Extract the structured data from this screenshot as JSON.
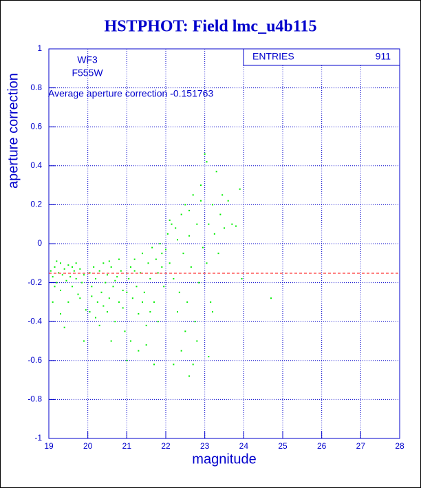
{
  "chart_data": {
    "type": "scatter",
    "title": "HSTPHOT: Field lmc_u4b115",
    "xlabel": "magnitude",
    "ylabel": "aperture correction",
    "xlim": [
      19,
      28
    ],
    "ylim": [
      -1,
      1
    ],
    "xticks": [
      19,
      20,
      21,
      22,
      23,
      24,
      25,
      26,
      27,
      28
    ],
    "yticks": [
      -1,
      -0.8,
      -0.6,
      -0.4,
      -0.2,
      0,
      0.2,
      0.4,
      0.6,
      0.8,
      1
    ],
    "grid": true,
    "stats": {
      "label": "ENTRIES",
      "value": 911
    },
    "annotations": [
      "WF3",
      "F555W",
      "Average aperture correction -0.151763"
    ],
    "reference_line": {
      "value": -0.151763,
      "color": "#ff0000"
    },
    "series": [
      {
        "color": "#00ee00",
        "x": [
          19.05,
          19.1,
          19.15,
          19.2,
          19.25,
          19.3,
          19.3,
          19.35,
          19.4,
          19.45,
          19.5,
          19.5,
          19.55,
          19.6,
          19.65,
          19.7,
          19.75,
          19.8,
          19.85,
          19.9,
          19.95,
          19.4,
          19.1,
          19.2,
          19.6,
          19.8,
          19.3,
          19.9,
          19.15,
          19.7,
          20.05,
          20.1,
          20.15,
          20.2,
          20.25,
          20.3,
          20.35,
          20.4,
          20.45,
          20.5,
          20.5,
          20.55,
          20.6,
          20.65,
          20.7,
          20.75,
          20.8,
          20.85,
          20.9,
          20.95,
          20.2,
          20.4,
          20.6,
          20.8,
          20.1,
          20.3,
          20.7,
          20.9,
          20.55,
          20.05,
          21.0,
          21.05,
          21.1,
          21.15,
          21.2,
          21.25,
          21.3,
          21.35,
          21.4,
          21.45,
          21.5,
          21.55,
          21.6,
          21.65,
          21.7,
          21.75,
          21.8,
          21.85,
          21.9,
          21.95,
          21.1,
          21.3,
          21.5,
          21.7,
          21.2,
          21.6,
          21.8,
          21.4,
          21.9,
          21.0,
          22.0,
          22.05,
          22.1,
          22.15,
          22.2,
          22.25,
          22.3,
          22.35,
          22.4,
          22.45,
          22.5,
          22.55,
          22.6,
          22.65,
          22.7,
          22.75,
          22.8,
          22.85,
          22.9,
          22.95,
          22.2,
          22.4,
          22.6,
          22.8,
          22.3,
          22.5,
          22.7,
          22.9,
          22.1,
          22.6,
          23.0,
          23.05,
          23.1,
          23.15,
          23.2,
          23.25,
          23.3,
          23.35,
          23.4,
          23.5,
          23.6,
          23.1,
          23.2,
          23.45,
          23.7,
          23.9,
          23.8,
          23.95,
          24.7,
          23.05
        ],
        "values": [
          -0.14,
          -0.17,
          -0.12,
          -0.2,
          -0.15,
          -0.1,
          -0.24,
          -0.16,
          -0.13,
          -0.19,
          -0.3,
          -0.11,
          -0.17,
          -0.22,
          -0.14,
          -0.18,
          -0.26,
          -0.13,
          -0.2,
          -0.16,
          -0.34,
          -0.43,
          -0.3,
          -0.09,
          -0.12,
          -0.28,
          -0.36,
          -0.5,
          -0.22,
          -0.1,
          -0.15,
          -0.22,
          -0.12,
          -0.18,
          -0.3,
          -0.14,
          -0.25,
          -0.1,
          -0.2,
          -0.35,
          -0.16,
          -0.28,
          -0.12,
          -0.22,
          -0.4,
          -0.17,
          -0.3,
          -0.14,
          -0.24,
          -0.45,
          -0.38,
          -0.32,
          -0.5,
          -0.08,
          -0.27,
          -0.42,
          -0.19,
          -0.33,
          -0.09,
          -0.35,
          -0.6,
          -0.18,
          -0.12,
          -0.28,
          -0.08,
          -0.22,
          -0.36,
          -0.15,
          -0.05,
          -0.25,
          -0.42,
          -0.1,
          -0.18,
          -0.02,
          -0.3,
          -0.08,
          -0.15,
          0.0,
          -0.05,
          -0.22,
          -0.5,
          -0.55,
          -0.52,
          -0.62,
          -0.14,
          -0.35,
          -0.4,
          -0.3,
          -0.12,
          -0.25,
          -0.03,
          0.05,
          -0.1,
          0.1,
          -0.18,
          0.08,
          0.02,
          -0.25,
          0.15,
          -0.05,
          0.2,
          -0.3,
          0.04,
          -0.12,
          0.25,
          -0.4,
          0.1,
          -0.2,
          0.3,
          -0.02,
          -0.62,
          -0.55,
          -0.68,
          -0.5,
          -0.35,
          -0.45,
          -0.62,
          0.22,
          0.12,
          0.17,
          0.46,
          -0.1,
          0.1,
          -0.3,
          0.2,
          0.05,
          0.37,
          -0.05,
          0.15,
          0.08,
          0.22,
          -0.58,
          -0.35,
          0.25,
          0.1,
          0.28,
          0.09,
          -0.18,
          -0.28,
          0.42
        ]
      }
    ]
  }
}
